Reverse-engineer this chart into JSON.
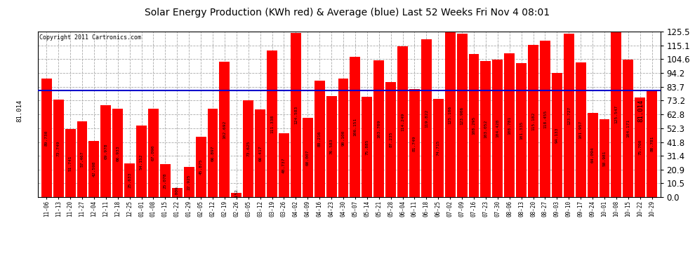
{
  "title": "Solar Energy Production (KWh red) & Average (blue) Last 52 Weeks Fri Nov 4 08:01",
  "copyright": "Copyright 2011 Cartronics.com",
  "average_value": 81.014,
  "bar_color": "#ff0000",
  "average_line_color": "#0000cc",
  "background_color": "#ffffff",
  "plot_bg_color": "#ffffff",
  "grid_color": "#aaaaaa",
  "ylim": [
    0.0,
    125.5
  ],
  "yticks_right": [
    0.0,
    10.5,
    20.9,
    31.4,
    41.8,
    52.3,
    62.8,
    73.2,
    83.7,
    94.2,
    104.6,
    115.1,
    125.5
  ],
  "categories": [
    "11-06",
    "11-13",
    "11-20",
    "11-27",
    "12-04",
    "12-11",
    "12-18",
    "12-25",
    "01-01",
    "01-08",
    "01-15",
    "01-22",
    "01-29",
    "02-05",
    "02-12",
    "02-19",
    "02-26",
    "03-05",
    "03-12",
    "03-19",
    "03-26",
    "04-02",
    "04-09",
    "04-16",
    "04-23",
    "04-30",
    "05-07",
    "05-14",
    "05-21",
    "05-28",
    "06-04",
    "06-11",
    "06-18",
    "06-25",
    "07-02",
    "07-09",
    "07-16",
    "07-23",
    "07-30",
    "08-06",
    "08-13",
    "08-20",
    "08-27",
    "09-03",
    "09-10",
    "09-17",
    "09-24",
    "10-01",
    "10-08",
    "10-15",
    "10-22",
    "10-29"
  ],
  "values": [
    89.73,
    73.749,
    51.741,
    57.467,
    42.598,
    69.978,
    66.933,
    25.633,
    54.152,
    67.09,
    25.078,
    7.009,
    22.925,
    45.875,
    66.897,
    102.692,
    3.152,
    73.625,
    66.417,
    111.338,
    48.737,
    124.583,
    60.007,
    88.216,
    76.583,
    90.1,
    106.151,
    75.885,
    103.709,
    87.235,
    114.249,
    81.749,
    119.822,
    74.715,
    125.106,
    123.906,
    108.295,
    103.052,
    104.428,
    108.781,
    101.335,
    115.182,
    118.455,
    94.133,
    123.727,
    101.957,
    64.094,
    58.981,
    125.547,
    104.171,
    75.7,
    80.781
  ],
  "value_label_fontsize": 4.5,
  "title_fontsize": 10,
  "copyright_fontsize": 6,
  "xtick_fontsize": 5.5,
  "ytick_fontsize": 8.5,
  "avg_label_fontsize": 6.5
}
